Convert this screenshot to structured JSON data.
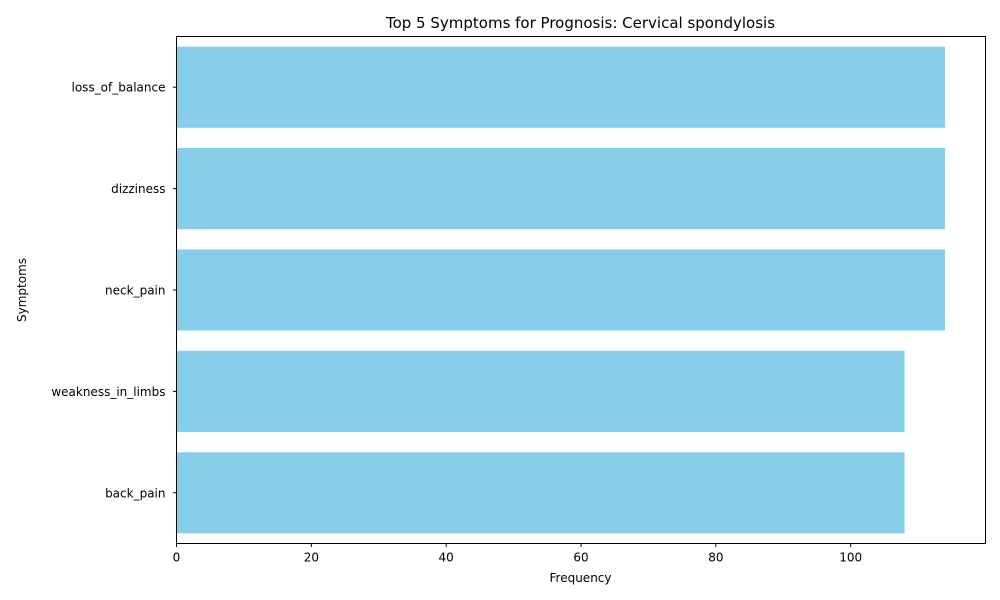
{
  "chart_data": {
    "type": "bar",
    "orientation": "horizontal",
    "title": "Top 5 Symptoms for Prognosis: Cervical spondylosis",
    "xlabel": "Frequency",
    "ylabel": "Symptoms",
    "categories": [
      "back_pain",
      "weakness_in_limbs",
      "neck_pain",
      "dizziness",
      "loss_of_balance"
    ],
    "values": [
      108,
      108,
      114,
      114,
      114
    ],
    "xlim": [
      0,
      120
    ],
    "xticks": [
      0,
      20,
      40,
      60,
      80,
      100
    ],
    "bar_color": "#87ceeb",
    "grid": false,
    "legend": false
  }
}
